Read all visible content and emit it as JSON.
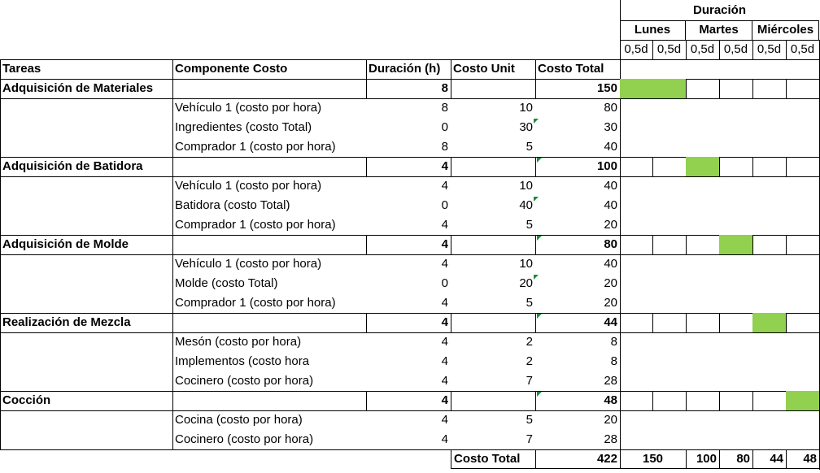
{
  "header": {
    "duracion": "Duración",
    "days": [
      "Lunes",
      "Martes",
      "Miércoles"
    ],
    "half_day_label": "0,5d"
  },
  "columns": [
    "Tareas",
    "Componente Costo",
    "Duración (h)",
    "Costo Unit",
    "Costo Total"
  ],
  "tasks": [
    {
      "name": "Adquisición de Materiales",
      "duration": "8",
      "total": "150",
      "gantt": [
        true,
        true,
        false,
        false,
        false,
        false
      ],
      "components": [
        {
          "name": "Vehículo 1 (costo por hora)",
          "duration": "8",
          "unit": "10",
          "total": "80",
          "note": false
        },
        {
          "name": "Ingredientes (costo Total)",
          "duration": "0",
          "unit": "30",
          "total": "30",
          "note": true
        },
        {
          "name": "Comprador 1 (costo por hora)",
          "duration": "8",
          "unit": "5",
          "total": "40",
          "note": false
        }
      ]
    },
    {
      "name": "Adquisición de Batidora",
      "duration": "4",
      "total": "100",
      "gantt": [
        false,
        false,
        true,
        false,
        false,
        false
      ],
      "components": [
        {
          "name": "Vehículo 1 (costo por hora)",
          "duration": "4",
          "unit": "10",
          "total": "40",
          "note": false
        },
        {
          "name": "Batidora (costo Total)",
          "duration": "0",
          "unit": "40",
          "total": "40",
          "note": true
        },
        {
          "name": "Comprador 1 (costo por hora)",
          "duration": "4",
          "unit": "5",
          "total": "20",
          "note": false
        }
      ]
    },
    {
      "name": "Adquisición de Molde",
      "duration": "4",
      "total": "80",
      "gantt": [
        false,
        false,
        false,
        true,
        false,
        false
      ],
      "components": [
        {
          "name": "Vehículo 1 (costo por hora)",
          "duration": "4",
          "unit": "10",
          "total": "40",
          "note": false
        },
        {
          "name": "Molde (costo Total)",
          "duration": "0",
          "unit": "20",
          "total": "20",
          "note": true
        },
        {
          "name": "Comprador 1 (costo por hora)",
          "duration": "4",
          "unit": "5",
          "total": "20",
          "note": false
        }
      ]
    },
    {
      "name": "Realización de Mezcla",
      "duration": "4",
      "total": "44",
      "gantt": [
        false,
        false,
        false,
        false,
        true,
        false
      ],
      "components": [
        {
          "name": "Mesón (costo por hora)",
          "duration": "4",
          "unit": "2",
          "total": "8",
          "note": false
        },
        {
          "name": "Implementos (costo hora",
          "duration": "4",
          "unit": "2",
          "total": "8",
          "note": false
        },
        {
          "name": "Cocinero (costo por hora)",
          "duration": "4",
          "unit": "7",
          "total": "28",
          "note": false
        }
      ]
    },
    {
      "name": "Cocción",
      "duration": "4",
      "total": "48",
      "gantt": [
        false,
        false,
        false,
        false,
        false,
        true
      ],
      "components": [
        {
          "name": "Cocina (costo por hora)",
          "duration": "4",
          "unit": "5",
          "total": "20",
          "note": false
        },
        {
          "name": "Cocinero (costo por hora)",
          "duration": "4",
          "unit": "7",
          "total": "28",
          "note": false
        }
      ]
    }
  ],
  "footer": {
    "label": "Costo Total",
    "total": "422",
    "day_totals": [
      "150",
      "100",
      "80",
      "44",
      "48"
    ]
  },
  "colors": {
    "gantt_fill": "#92d050",
    "note_marker": "#1e8c3a",
    "grid": "#000000"
  }
}
